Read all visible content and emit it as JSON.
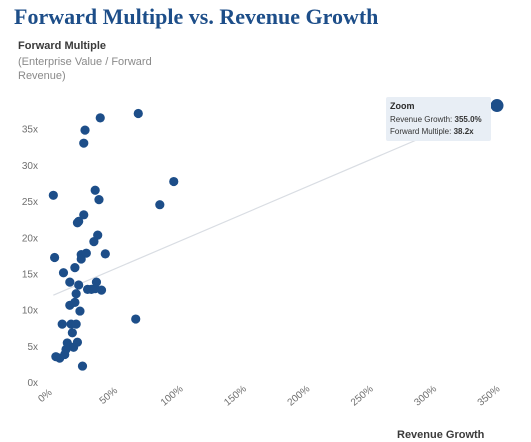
{
  "title": "Forward Multiple vs. Revenue Growth",
  "y_axis": {
    "title": "Forward Multiple",
    "subtitle": "(Enterprise Value / Forward Revenue)"
  },
  "x_axis": {
    "title": "Revenue Growth"
  },
  "tooltip": {
    "title": "Zoom",
    "growth_label": "Revenue Growth:",
    "growth_value": "355.0%",
    "multiple_label": "Forward Multiple:",
    "multiple_value": "38.2x"
  },
  "colors": {
    "title": "#1d4e89",
    "points": "#1d4e89",
    "trendline": "#d9dde3",
    "tooltip_bg": "#e8eef5"
  },
  "chart_data": {
    "type": "scatter",
    "title": "Forward Multiple vs. Revenue Growth",
    "xlabel": "Revenue Growth",
    "ylabel": "Forward Multiple",
    "xlim": [
      0,
      355
    ],
    "ylim": [
      0,
      38
    ],
    "x_ticks": [
      0,
      50,
      100,
      150,
      200,
      250,
      300,
      350
    ],
    "x_tick_labels": [
      "0%",
      "50%",
      "100%",
      "150%",
      "200%",
      "250%",
      "300%",
      "350%"
    ],
    "y_ticks": [
      0,
      5,
      10,
      15,
      20,
      25,
      30,
      35
    ],
    "y_tick_labels": [
      "0x",
      "5x",
      "10x",
      "15x",
      "20x",
      "25x",
      "30x",
      "35x"
    ],
    "grid": false,
    "highlighted_point": {
      "name": "Zoom",
      "x": 355.0,
      "y": 38.2
    },
    "trendline": {
      "x": [
        5,
        355
      ],
      "y": [
        12.0,
        38.2
      ]
    },
    "points": [
      {
        "x": 5,
        "y": 25.8
      },
      {
        "x": 6,
        "y": 17.2
      },
      {
        "x": 7,
        "y": 3.5
      },
      {
        "x": 10,
        "y": 3.3
      },
      {
        "x": 12,
        "y": 8.0
      },
      {
        "x": 13,
        "y": 15.1
      },
      {
        "x": 14,
        "y": 3.8
      },
      {
        "x": 15,
        "y": 4.5
      },
      {
        "x": 16,
        "y": 5.4
      },
      {
        "x": 17,
        "y": 5.0
      },
      {
        "x": 18,
        "y": 10.6
      },
      {
        "x": 18,
        "y": 13.8
      },
      {
        "x": 19,
        "y": 8.0
      },
      {
        "x": 20,
        "y": 6.8
      },
      {
        "x": 21,
        "y": 4.8
      },
      {
        "x": 22,
        "y": 15.8
      },
      {
        "x": 22,
        "y": 11.0
      },
      {
        "x": 23,
        "y": 12.2
      },
      {
        "x": 23,
        "y": 8.0
      },
      {
        "x": 24,
        "y": 5.5
      },
      {
        "x": 24,
        "y": 22.0
      },
      {
        "x": 25,
        "y": 13.4
      },
      {
        "x": 25,
        "y": 22.2
      },
      {
        "x": 26,
        "y": 9.8
      },
      {
        "x": 27,
        "y": 17.6
      },
      {
        "x": 27,
        "y": 17.0
      },
      {
        "x": 28,
        "y": 2.2
      },
      {
        "x": 29,
        "y": 33.0
      },
      {
        "x": 29,
        "y": 23.1
      },
      {
        "x": 30,
        "y": 34.8
      },
      {
        "x": 31,
        "y": 17.8
      },
      {
        "x": 32,
        "y": 12.8
      },
      {
        "x": 35,
        "y": 12.8
      },
      {
        "x": 37,
        "y": 19.4
      },
      {
        "x": 38,
        "y": 26.5
      },
      {
        "x": 38,
        "y": 12.9
      },
      {
        "x": 39,
        "y": 13.8
      },
      {
        "x": 40,
        "y": 20.3
      },
      {
        "x": 41,
        "y": 25.2
      },
      {
        "x": 42,
        "y": 36.5
      },
      {
        "x": 43,
        "y": 12.7
      },
      {
        "x": 46,
        "y": 17.7
      },
      {
        "x": 70,
        "y": 8.7
      },
      {
        "x": 72,
        "y": 37.1
      },
      {
        "x": 89,
        "y": 24.5
      },
      {
        "x": 100,
        "y": 27.7
      }
    ]
  }
}
